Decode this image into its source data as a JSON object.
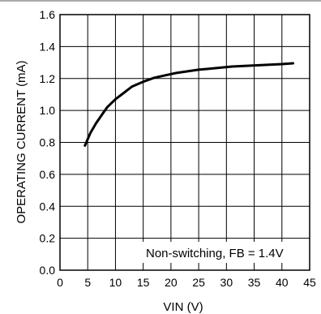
{
  "chart_data": {
    "type": "line",
    "xlabel": "VIN (V)",
    "ylabel": "OPERATING CURRENT (mA)",
    "xlim": [
      0,
      45
    ],
    "ylim": [
      0.0,
      1.6
    ],
    "x_ticks": [
      "0",
      "5",
      "10",
      "15",
      "20",
      "25",
      "30",
      "35",
      "40",
      "45"
    ],
    "y_ticks": [
      "0.0",
      "0.2",
      "0.4",
      "0.6",
      "0.8",
      "1.0",
      "1.2",
      "1.4",
      "1.6"
    ],
    "grid": true,
    "annotation": "Non-switching, FB = 1.4V",
    "series": [
      {
        "x": [
          4.5,
          5.5,
          6.5,
          7.5,
          8.5,
          10,
          11.5,
          13,
          15,
          17,
          19,
          21,
          23,
          25,
          28,
          31,
          34,
          37,
          40,
          42
        ],
        "y": [
          0.78,
          0.86,
          0.92,
          0.97,
          1.02,
          1.07,
          1.11,
          1.15,
          1.18,
          1.205,
          1.22,
          1.235,
          1.245,
          1.255,
          1.265,
          1.275,
          1.28,
          1.285,
          1.29,
          1.295
        ],
        "color": "#000000"
      }
    ]
  }
}
